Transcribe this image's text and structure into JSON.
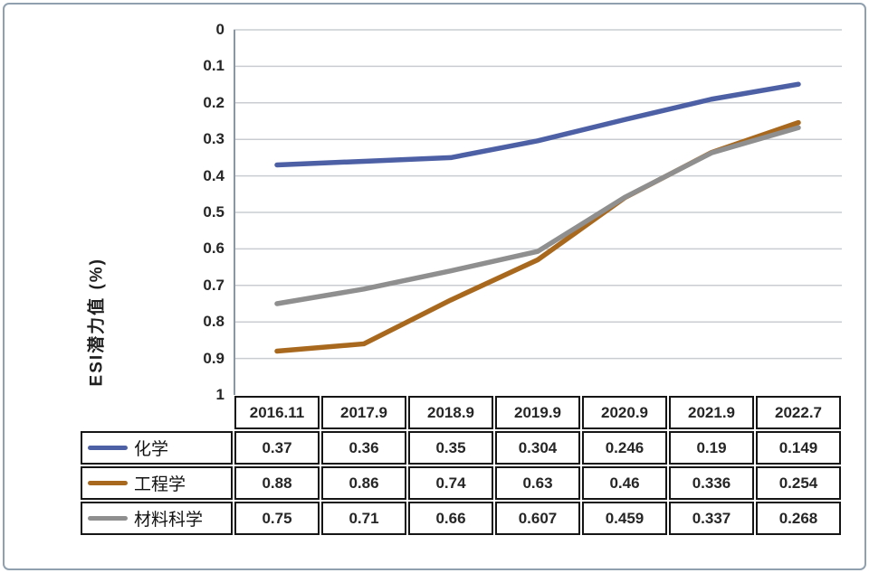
{
  "figure": {
    "background": "#ffffff",
    "border_color": "#90A0AE"
  },
  "chart_data": {
    "type": "line",
    "title": "",
    "xlabel": "",
    "ylabel": "ESI潜力值 (%)",
    "x_categories": [
      "2016.11",
      "2017.9",
      "2018.9",
      "2019.9",
      "2020.9",
      "2021.9",
      "2022.7"
    ],
    "series": [
      {
        "name": "化学",
        "color": "#4D60A5",
        "values": [
          0.37,
          0.36,
          0.35,
          0.304,
          0.246,
          0.19,
          0.149
        ]
      },
      {
        "name": "工程学",
        "color": "#A8691F",
        "values": [
          0.88,
          0.86,
          0.74,
          0.63,
          0.46,
          0.336,
          0.254
        ]
      },
      {
        "name": "材料科学",
        "color": "#8F8F8F",
        "values": [
          0.75,
          0.71,
          0.66,
          0.607,
          0.459,
          0.337,
          0.268
        ]
      }
    ],
    "y_axis": {
      "min": 0,
      "max": 1,
      "step": 0.1,
      "inverted": true,
      "tick_labels": [
        "0",
        "0.1",
        "0.2",
        "0.3",
        "0.4",
        "0.5",
        "0.6",
        "0.7",
        "0.8",
        "0.9",
        "1"
      ]
    },
    "grid": true,
    "gridline_color": "#C9CDD1",
    "axis_line_color": "#8A97A3",
    "legend_position": "table-left",
    "table_border_color": "#151515"
  }
}
